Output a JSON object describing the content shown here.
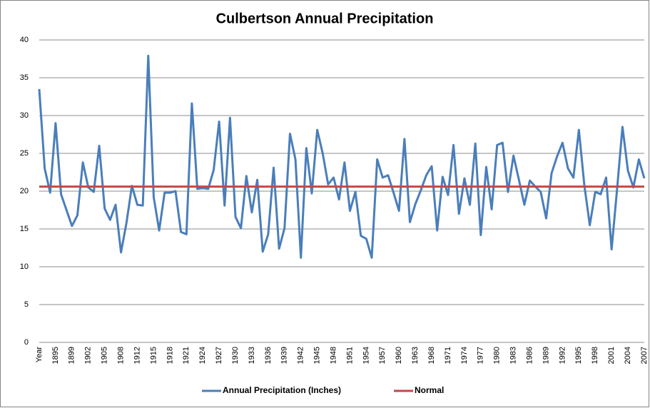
{
  "chart_data": {
    "type": "line",
    "title": "Culbertson Annual Precipitation",
    "categories": [
      "Year",
      null,
      null,
      "1895",
      null,
      null,
      "1899",
      null,
      null,
      "1902",
      null,
      null,
      "1905",
      null,
      null,
      "1908",
      null,
      null,
      "1912",
      null,
      null,
      "1915",
      null,
      null,
      "1918",
      null,
      null,
      "1921",
      null,
      null,
      "1924",
      null,
      null,
      "1927",
      null,
      null,
      "1930",
      null,
      null,
      "1933",
      null,
      null,
      "1936",
      null,
      null,
      "1939",
      null,
      null,
      "1942",
      null,
      null,
      "1945",
      null,
      null,
      "1948",
      null,
      null,
      "1951",
      null,
      null,
      "1954",
      null,
      null,
      "1957",
      null,
      null,
      "1960",
      null,
      null,
      "1963",
      null,
      null,
      "1968",
      null,
      null,
      "1971",
      null,
      null,
      "1974",
      null,
      null,
      "1977",
      null,
      null,
      "1980",
      null,
      null,
      "1983",
      null,
      null,
      "1986",
      null,
      null,
      "1989",
      null,
      null,
      "1992",
      null,
      null,
      "1995",
      null,
      null,
      "1998",
      null,
      null,
      "2001",
      null,
      null,
      "2004",
      null,
      null,
      "2007"
    ],
    "series": [
      {
        "name": "Annual Precipitation (Inches)",
        "color": "#4a7ebb",
        "values": [
          33.5,
          23,
          19.8,
          29,
          19.6,
          17.5,
          15.4,
          16.8,
          23.8,
          20.5,
          19.9,
          26,
          17.7,
          16.2,
          18.2,
          11.9,
          15.8,
          20.7,
          18.2,
          18.1,
          37.9,
          19.2,
          14.8,
          19.8,
          19.8,
          20,
          14.6,
          14.3,
          31.6,
          20.3,
          20.4,
          20.3,
          22.8,
          29.2,
          18.1,
          29.7,
          16.6,
          15.1,
          22,
          17.2,
          21.5,
          12,
          14.3,
          23.1,
          12.4,
          15.1,
          27.6,
          24.2,
          11.2,
          25.7,
          19.7,
          28.1,
          25,
          20.9,
          21.8,
          18.9,
          23.8,
          17.4,
          19.9,
          14.1,
          13.7,
          11.2,
          24.2,
          21.8,
          22.1,
          19.8,
          17.4,
          26.9,
          15.9,
          18.3,
          20.1,
          22.1,
          23.3,
          14.8,
          21.9,
          19.5,
          26.1,
          17,
          21.7,
          18.2,
          26.3,
          14.2,
          23.2,
          17.6,
          26.1,
          26.4,
          19.9,
          24.7,
          21.5,
          18.2,
          21.4,
          20.6,
          19.9,
          16.4,
          22.4,
          24.6,
          26.4,
          23,
          21.8,
          28.1,
          20.8,
          15.5,
          19.9,
          19.6,
          21.8,
          12.3,
          20.2,
          28.5,
          22.7,
          20.5,
          24.2,
          21.7
        ]
      },
      {
        "name": "Normal",
        "color": "#be4b48",
        "values": [
          20.6,
          20.6,
          20.6,
          20.6,
          20.6,
          20.6,
          20.6,
          20.6,
          20.6,
          20.6,
          20.6,
          20.6,
          20.6,
          20.6,
          20.6,
          20.6,
          20.6,
          20.6,
          20.6,
          20.6,
          20.6,
          20.6,
          20.6,
          20.6,
          20.6,
          20.6,
          20.6,
          20.6,
          20.6,
          20.6,
          20.6,
          20.6,
          20.6,
          20.6,
          20.6,
          20.6,
          20.6,
          20.6,
          20.6,
          20.6,
          20.6,
          20.6,
          20.6,
          20.6,
          20.6,
          20.6,
          20.6,
          20.6,
          20.6,
          20.6,
          20.6,
          20.6,
          20.6,
          20.6,
          20.6,
          20.6,
          20.6,
          20.6,
          20.6,
          20.6,
          20.6,
          20.6,
          20.6,
          20.6,
          20.6,
          20.6,
          20.6,
          20.6,
          20.6,
          20.6,
          20.6,
          20.6,
          20.6,
          20.6,
          20.6,
          20.6,
          20.6,
          20.6,
          20.6,
          20.6,
          20.6,
          20.6,
          20.6,
          20.6,
          20.6,
          20.6,
          20.6,
          20.6,
          20.6,
          20.6,
          20.6,
          20.6,
          20.6,
          20.6,
          20.6,
          20.6,
          20.6,
          20.6,
          20.6,
          20.6,
          20.6,
          20.6,
          20.6,
          20.6,
          20.6,
          20.6,
          20.6,
          20.6,
          20.6,
          20.6,
          20.6,
          20.6
        ]
      }
    ],
    "ylim": [
      0,
      40
    ],
    "yticks": [
      0,
      5,
      10,
      15,
      20,
      25,
      30,
      35,
      40
    ],
    "grid": true,
    "legend": "bottom"
  }
}
